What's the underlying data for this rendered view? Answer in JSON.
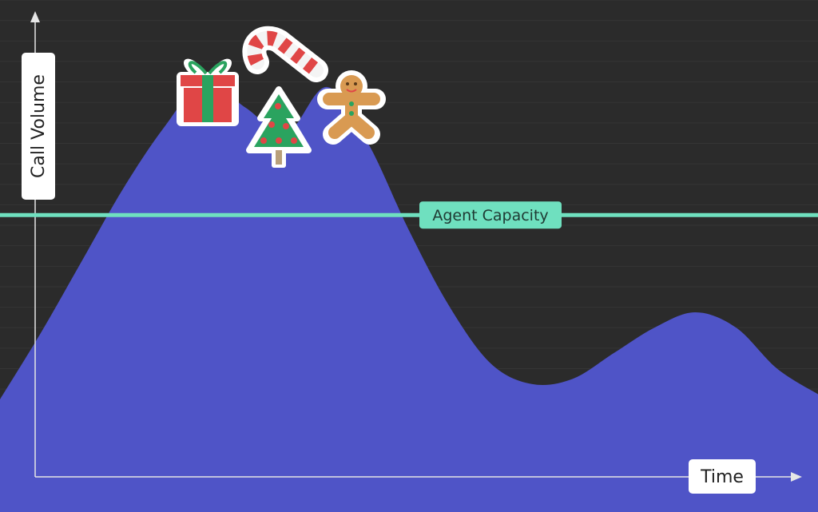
{
  "chart_data": {
    "type": "area",
    "title": "",
    "xlabel": "Time",
    "ylabel": "Call Volume",
    "x": [
      0,
      1,
      2,
      3,
      4,
      5,
      6,
      7,
      8,
      9,
      10,
      11,
      12,
      13,
      14,
      15,
      16,
      17,
      18,
      19,
      20
    ],
    "series": [
      {
        "name": "Call Volume",
        "color": "#4f54c7",
        "values": [
          22,
          35,
          49,
          63,
          75,
          84,
          79,
          74,
          83,
          72,
          55,
          40,
          29,
          25,
          26,
          31,
          36,
          39,
          36,
          28,
          23
        ]
      }
    ],
    "reference_line": {
      "label": "Agent Capacity",
      "value": 58,
      "color": "#6fe0bf"
    },
    "ylim": [
      0,
      100
    ],
    "grid": true,
    "annotations": [
      "gift-icon",
      "candy-cane-icon",
      "christmas-tree-icon",
      "gingerbread-man-icon"
    ],
    "colors": {
      "background": "#2b2b2b",
      "axis": "#e6e6e6",
      "label_bg": "#ffffff"
    }
  }
}
